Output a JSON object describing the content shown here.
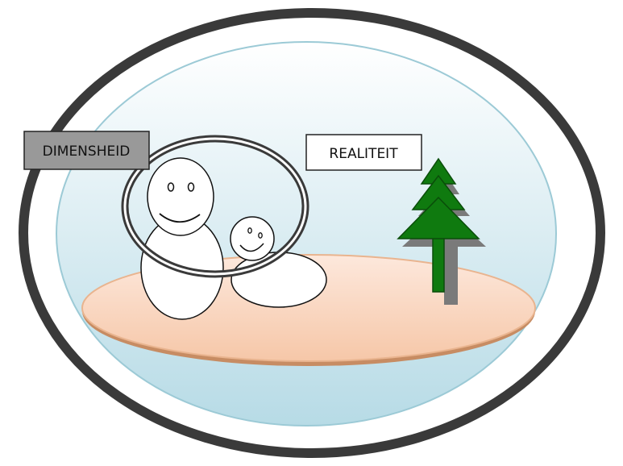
{
  "labels": {
    "dimensionality": "DIMENSHEID",
    "reality": "REALITEIT"
  },
  "colors": {
    "outer_ring": "#3a3a3a",
    "inner_sky_top": "#ffffff",
    "inner_sky_bottom": "#b7dbe6",
    "inner_border": "#9ccad6",
    "ground_fill_top": "#fde8dc",
    "ground_fill_bottom": "#f6c7a8",
    "ground_edge": "#c78c63",
    "tree_green": "#0f7a0f",
    "tree_shadow": "#7a7a7a",
    "dimension_label_bg": "#999999",
    "reality_label_bg": "#ffffff",
    "dimension_ring": "#3a3a3a"
  },
  "icons": {
    "adult_figure": "person-figure-icon",
    "child_figure": "child-figure-icon",
    "tree": "fir-tree-icon"
  }
}
